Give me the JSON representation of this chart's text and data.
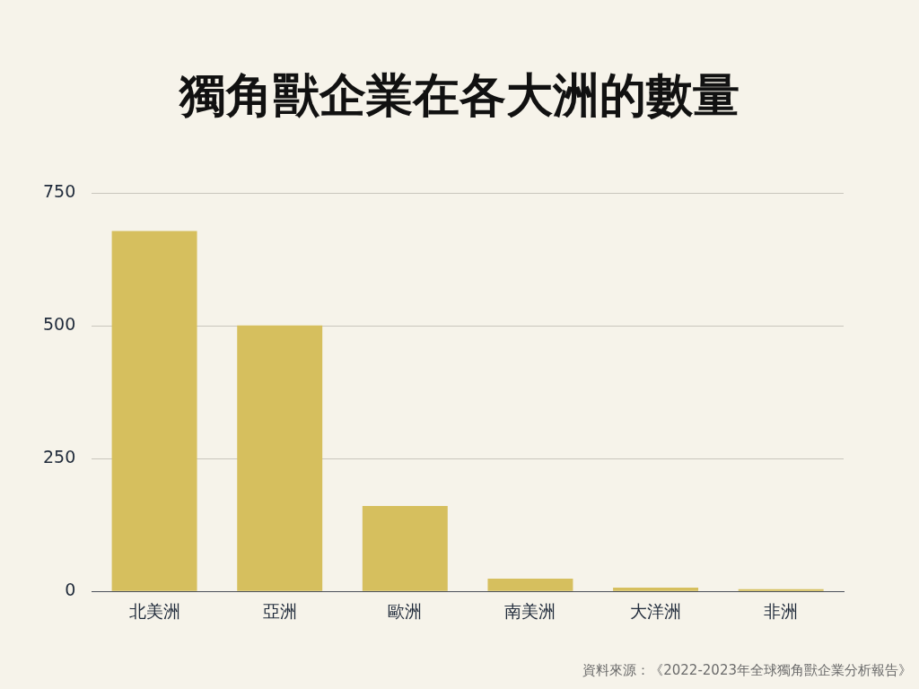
{
  "chart_data": {
    "type": "bar",
    "title": "獨角獸企業在各大洲的數量",
    "categories": [
      "北美洲",
      "亞洲",
      "歐洲",
      "南美洲",
      "大洋洲",
      "非洲"
    ],
    "values": [
      679,
      501,
      161,
      24,
      7,
      4
    ],
    "color": "#d6bf5e",
    "ylim": [
      0,
      750
    ],
    "yticks": [
      0,
      250,
      500,
      750
    ],
    "grid": "y",
    "legend": false,
    "annotations": [
      "資料來源：《2022-2023年全球獨角獸企業分析報告》"
    ]
  }
}
